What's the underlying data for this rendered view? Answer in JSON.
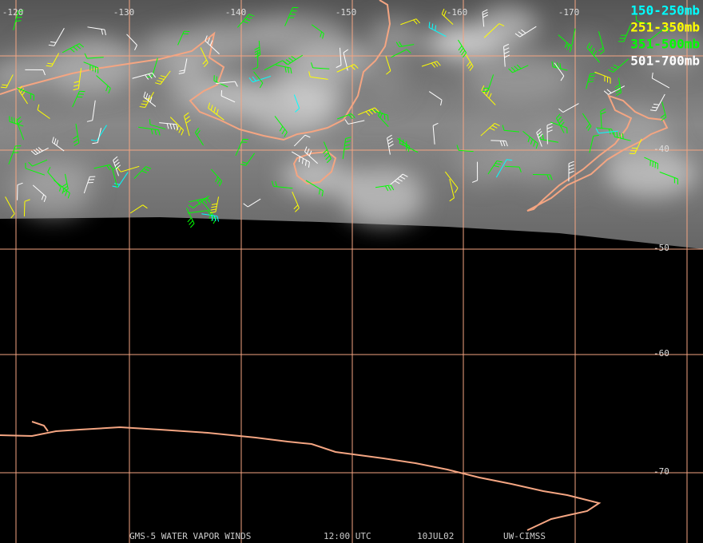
{
  "grid": {
    "longitude_labels": [
      "-120",
      "-130",
      "-140",
      "-150",
      "-160",
      "-170"
    ],
    "latitude_labels": [
      "-40",
      "-50",
      "-60",
      "-70"
    ]
  },
  "legend": [
    {
      "label": "150-250mb",
      "color": "#00ffff"
    },
    {
      "label": "251-350mb",
      "color": "#ffff00"
    },
    {
      "label": "351-500mb",
      "color": "#00ff00"
    },
    {
      "label": "501-700mb",
      "color": "#ffffff"
    }
  ],
  "footer": {
    "product": "GMS-5 WATER VAPOR WINDS",
    "time": "12:00 UTC",
    "date": "10JUL02",
    "source": "UW-CIMSS"
  }
}
